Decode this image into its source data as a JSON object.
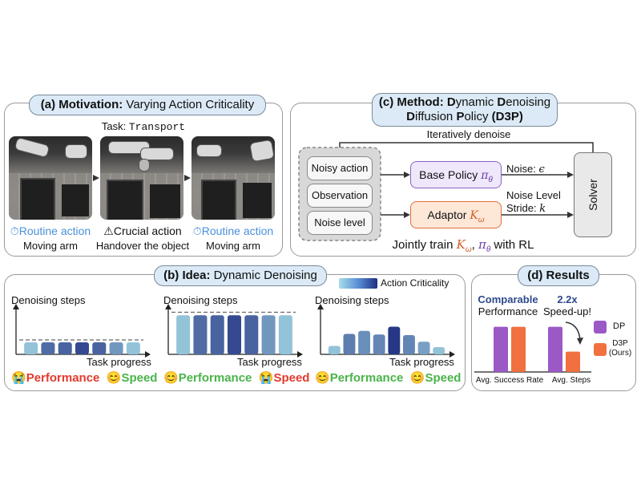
{
  "panel_a": {
    "tag_prefix": "(a) Motivation:",
    "tag_rest": " Varying Action Criticality",
    "task_label": "Task:",
    "task_name": "Transport",
    "frames": [
      {
        "action": "Routine action",
        "desc": "Moving arm",
        "icon": "timer-icon"
      },
      {
        "action": "Crucial action",
        "desc": "Handover the object",
        "icon": "warning-icon"
      },
      {
        "action": "Routine action",
        "desc": "Moving arm",
        "icon": "timer-icon"
      }
    ]
  },
  "panel_c": {
    "tag_prefix": "(c) Method: ",
    "tag_line1": [
      "D",
      "ynamic ",
      "D",
      "enoising"
    ],
    "tag_line2": [
      "D",
      "iffusion ",
      "P",
      "olicy ",
      "(D3P)"
    ],
    "loop_label": "Iteratively denoise",
    "inputs": [
      "Noisy action",
      "Observation",
      "Noise level"
    ],
    "base_policy": "Base Policy",
    "base_policy_sym": "π",
    "base_policy_sub": "θ",
    "adaptor": "Adaptor",
    "adaptor_sym": "K",
    "adaptor_sub": "ω",
    "noise_label": "Noise:",
    "noise_sym": "ϵ",
    "noise_level_label": "Noise Level",
    "stride_label": "Stride:",
    "stride_sym": "k",
    "solver": "Solver",
    "joint_prefix": "Jointly train ",
    "joint_k": "K",
    "joint_k_sub": "ω",
    "joint_pi": "π",
    "joint_pi_sub": "θ",
    "joint_suffix": " with RL"
  },
  "panel_b": {
    "tag_prefix": "(b) Idea:",
    "tag_rest": " Dynamic Denoising",
    "legend": "Action Criticality",
    "charts": [
      {
        "ylabel": "Denoising steps",
        "xlabel": "Task progress",
        "left": "Performance",
        "right": "Speed",
        "left_emoji": "😭",
        "right_emoji": "😊",
        "left_good": false,
        "right_good": true,
        "bars": [
          2,
          2,
          2,
          2,
          2,
          2,
          2
        ],
        "crit": [
          0.15,
          0.65,
          0.7,
          0.85,
          0.7,
          0.4,
          0.15
        ],
        "threshold": 2.4,
        "ymax": 8
      },
      {
        "ylabel": "Denoising steps",
        "xlabel": "Task progress",
        "left": "Performance",
        "right": "Speed",
        "left_emoji": "😊",
        "right_emoji": "😭",
        "left_good": true,
        "right_good": false,
        "bars": [
          6.5,
          6.5,
          6.5,
          6.5,
          6.5,
          6.5,
          6.5
        ],
        "crit": [
          0.15,
          0.65,
          0.7,
          0.85,
          0.7,
          0.4,
          0.15
        ],
        "threshold": 7,
        "ymax": 8
      },
      {
        "ylabel": "Denoising steps",
        "xlabel": "Task progress",
        "left": "Performance",
        "right": "Speed",
        "left_emoji": "😊",
        "right_emoji": "😊",
        "left_good": true,
        "right_good": true,
        "bars": [
          1.4,
          3.4,
          3.9,
          3.3,
          4.6,
          3.2,
          2.1,
          1.2
        ],
        "crit": [
          0.15,
          0.55,
          0.45,
          0.5,
          0.95,
          0.5,
          0.35,
          0.15
        ],
        "threshold": 0,
        "ymax": 8
      }
    ]
  },
  "panel_d": {
    "tag": "(d) Results",
    "comparable": "Comparable",
    "performance": "Performance",
    "speedup_value": "2.2x",
    "speedup_label": "Speed-up!",
    "xlabels": [
      "Avg. Success Rate",
      "Avg. Steps"
    ],
    "legend": [
      {
        "label": "DP",
        "color": "#9b59c6"
      },
      {
        "label": "D3P",
        "sub": "(Ours)",
        "color": "#f07040"
      }
    ]
  },
  "chart_data": {
    "type": "bar",
    "title": "(d) Results",
    "categories": [
      "Avg. Success Rate",
      "Avg. Steps"
    ],
    "series": [
      {
        "name": "DP",
        "values": [
          1.0,
          1.0
        ]
      },
      {
        "name": "D3P (Ours)",
        "values": [
          1.0,
          0.45
        ]
      }
    ],
    "ylim": [
      0,
      1.1
    ],
    "xlabel": "",
    "ylabel": ""
  },
  "colors": {
    "purple": "#9b59c6",
    "orange": "#f07040",
    "tag_bg": "#dbeaf6",
    "crit_low": "#a8dde9",
    "crit_high": "#1f2f80"
  }
}
